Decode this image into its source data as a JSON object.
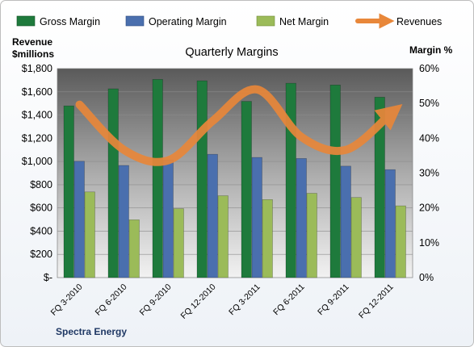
{
  "chart_data": {
    "type": "bar",
    "title": "Quarterly Margins",
    "ylabel_left": [
      "Revenue",
      "$millions"
    ],
    "ylabel_right": "Margin %",
    "footer": "Spectra Energy",
    "categories": [
      "FQ 3-2010",
      "FQ 6-2010",
      "FQ 9-2010",
      "FQ 12-2010",
      "FQ 3-2011",
      "FQ 6-2011",
      "FQ 9-2011",
      "FQ 12-2011"
    ],
    "left_axis": {
      "min": 0,
      "max": 1800,
      "ticks": [
        "$-",
        "$200",
        "$400",
        "$600",
        "$800",
        "$1,000",
        "$1,200",
        "$1,400",
        "$1,600",
        "$1,800"
      ]
    },
    "right_axis": {
      "min": 0,
      "max": 60,
      "ticks": [
        "0%",
        "10%",
        "20%",
        "30%",
        "40%",
        "50%",
        "60%"
      ]
    },
    "series": [
      {
        "name": "Gross Margin",
        "axis": "right",
        "kind": "bar",
        "color": "#1e7a3c",
        "values": [
          49.3,
          54.2,
          56.9,
          56.5,
          50.6,
          55.8,
          55.3,
          51.8
        ]
      },
      {
        "name": "Operating Margin",
        "axis": "right",
        "kind": "bar",
        "color": "#4a6fae",
        "values": [
          33.4,
          32.2,
          33.8,
          35.4,
          34.5,
          34.2,
          32.0,
          31.0
        ]
      },
      {
        "name": "Net Margin",
        "axis": "right",
        "kind": "bar",
        "color": "#9bbb59",
        "values": [
          24.6,
          16.6,
          19.8,
          23.5,
          22.4,
          24.2,
          23.0,
          20.6
        ]
      },
      {
        "name": "Revenues",
        "axis": "left",
        "kind": "line",
        "color": "#e8873a",
        "values": [
          1490,
          1100,
          1010,
          1350,
          1620,
          1210,
          1100,
          1410
        ]
      }
    ],
    "legend_position": "top",
    "grid": true
  }
}
